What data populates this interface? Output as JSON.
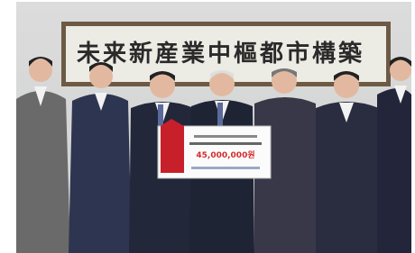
{
  "banner": {
    "text": "未来新産業中樞都市構築"
  },
  "check": {
    "amount": "45,000,000원"
  }
}
